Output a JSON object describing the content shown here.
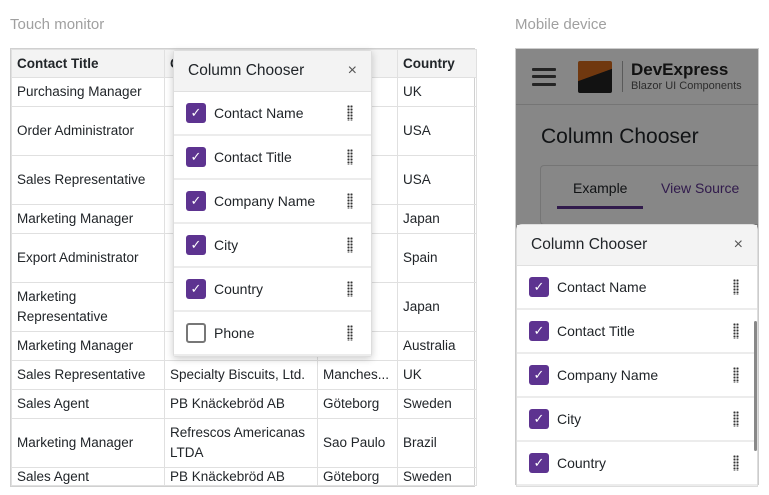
{
  "captions": {
    "touch": "Touch monitor",
    "mobile": "Mobile device"
  },
  "grid": {
    "headers": [
      "Contact Title",
      "C",
      "",
      "Country"
    ],
    "rows": [
      [
        "Purchasing Manager",
        "",
        "",
        "UK"
      ],
      [
        "Order Administrator",
        "",
        "",
        "USA"
      ],
      [
        "Sales Representative",
        "",
        "",
        "USA"
      ],
      [
        "Marketing Manager",
        "",
        "",
        "Japan"
      ],
      [
        "Export Administrator",
        "",
        "",
        "Spain"
      ],
      [
        "Marketing Representative",
        "",
        "",
        "Japan"
      ],
      [
        "Marketing Manager",
        "",
        "",
        "Australia"
      ],
      [
        "Sales Representative",
        "Specialty Biscuits, Ltd.",
        "Manches...",
        "UK"
      ],
      [
        "Sales Agent",
        "PB Knäckebröd AB",
        "Göteborg",
        "Sweden"
      ],
      [
        "Marketing Manager",
        "Refrescos Americanas LTDA",
        "Sao Paulo",
        "Brazil"
      ],
      [
        "Sales Agent",
        "PB Knäckebröd AB",
        "Göteborg",
        "Sweden"
      ]
    ]
  },
  "chooser": {
    "title": "Column Chooser",
    "close": "×",
    "items": [
      {
        "label": "Contact Name",
        "checked": true
      },
      {
        "label": "Contact Title",
        "checked": true
      },
      {
        "label": "Company Name",
        "checked": true
      },
      {
        "label": "City",
        "checked": true
      },
      {
        "label": "Country",
        "checked": true
      },
      {
        "label": "Phone",
        "checked": false
      }
    ]
  },
  "mobile": {
    "brand": "DevExpress",
    "brand_sub": "Blazor UI Components",
    "title": "Column Chooser",
    "tabs": [
      "Example",
      "View Source"
    ],
    "accent": "#5d3390"
  },
  "icons": {
    "check": "✓",
    "drag": "drag-handle-icon",
    "menu": "hamburger-icon"
  }
}
